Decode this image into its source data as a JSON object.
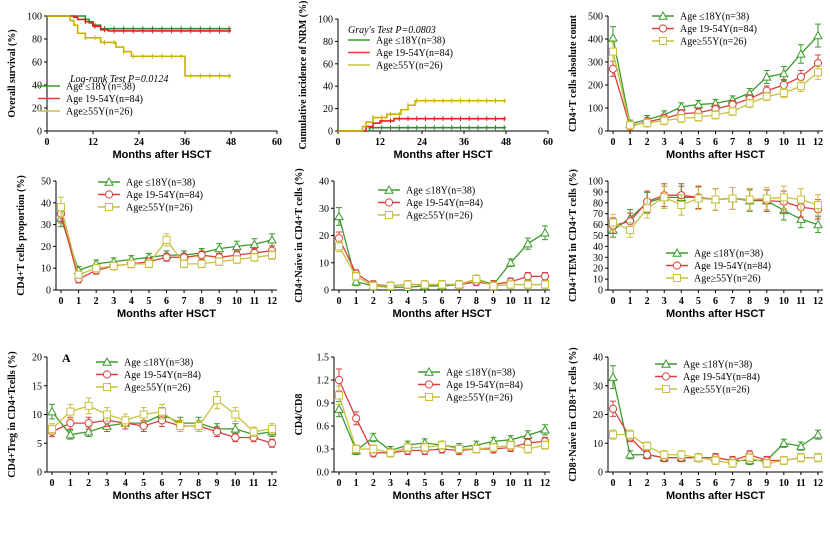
{
  "chart_data": [
    {
      "id": "os",
      "type": "line",
      "title": "",
      "xlabel": "Months after HSCT",
      "ylabel": "Overall survival (%)",
      "xlim": [
        0,
        60
      ],
      "ylim": [
        0,
        100
      ],
      "xticks": [
        "0",
        "12",
        "24",
        "36",
        "48",
        "60"
      ],
      "yticks": [
        "0",
        "20",
        "40",
        "60",
        "80",
        "100"
      ],
      "annotation": "Log-rank Test P=0.0124",
      "legend": [
        "Age ≤18Y(n=38)",
        "Age 19-54Y(n=84)",
        "Age≥55Y(n=26)"
      ],
      "series": [
        {
          "name": "Age ≤18Y(n=38)",
          "color": "#2e8b2e",
          "step": true,
          "points": [
            [
              0,
              100
            ],
            [
              9,
              100
            ],
            [
              10,
              97
            ],
            [
              11,
              94
            ],
            [
              12,
              92
            ],
            [
              14,
              89
            ],
            [
              24,
              89
            ],
            [
              48,
              89
            ]
          ]
        },
        {
          "name": "Age 19-54Y(n=84)",
          "color": "#e02020",
          "step": true,
          "points": [
            [
              0,
              100
            ],
            [
              7,
              99
            ],
            [
              8,
              97
            ],
            [
              10,
              95
            ],
            [
              12,
              91
            ],
            [
              14,
              88
            ],
            [
              16,
              87
            ],
            [
              48,
              87
            ]
          ]
        },
        {
          "name": "Age≥55Y(n=26)",
          "color": "#c8b400",
          "step": true,
          "points": [
            [
              0,
              100
            ],
            [
              6,
              96
            ],
            [
              7,
              92
            ],
            [
              8,
              85
            ],
            [
              10,
              81
            ],
            [
              14,
              77
            ],
            [
              18,
              73
            ],
            [
              20,
              69
            ],
            [
              22,
              65
            ],
            [
              30,
              65
            ],
            [
              36,
              48
            ],
            [
              48,
              48
            ]
          ]
        }
      ]
    },
    {
      "id": "nrm",
      "type": "line",
      "title": "",
      "xlabel": "Months after HSCT",
      "ylabel": "Cumulative incidence of NRM (%)",
      "xlim": [
        0,
        60
      ],
      "ylim": [
        0,
        100
      ],
      "xticks": [
        "0",
        "12",
        "24",
        "36",
        "48",
        "60"
      ],
      "yticks": [
        "0",
        "20",
        "40",
        "60",
        "80",
        "100"
      ],
      "annotation": "Gray's Test P=0.0803",
      "legend": [
        "Age ≤18Y(n=38)",
        "Age 19-54Y(n=84)",
        "Age≥55Y(n=26)"
      ],
      "series": [
        {
          "name": "Age ≤18Y(n=38)",
          "color": "#2e8b2e",
          "step": true,
          "points": [
            [
              0,
              0
            ],
            [
              8,
              0
            ],
            [
              9,
              3
            ],
            [
              48,
              3
            ]
          ]
        },
        {
          "name": "Age 19-54Y(n=84)",
          "color": "#e02020",
          "step": true,
          "points": [
            [
              0,
              0
            ],
            [
              7,
              0
            ],
            [
              8,
              4
            ],
            [
              10,
              7
            ],
            [
              12,
              9
            ],
            [
              16,
              11
            ],
            [
              48,
              11
            ]
          ]
        },
        {
          "name": "Age≥55Y(n=26)",
          "color": "#c8b400",
          "step": true,
          "points": [
            [
              0,
              0
            ],
            [
              6,
              0
            ],
            [
              7,
              4
            ],
            [
              8,
              8
            ],
            [
              10,
              12
            ],
            [
              14,
              15
            ],
            [
              18,
              19
            ],
            [
              20,
              23
            ],
            [
              22,
              27
            ],
            [
              48,
              27
            ]
          ]
        }
      ]
    },
    {
      "id": "cd4",
      "type": "line",
      "xlabel": "Months after HSCT",
      "ylabel": "CD4+T cells absolute count",
      "ylim": [
        0,
        500
      ],
      "yticks": [
        "0",
        "100",
        "200",
        "300",
        "400",
        "500"
      ],
      "categories": [
        "0",
        "1",
        "2",
        "3",
        "4",
        "5",
        "6",
        "7",
        "8",
        "9",
        "10",
        "11",
        "12"
      ],
      "legend": [
        "Age ≤18Y(n=38)",
        "Age 19-54Y(n=84)",
        "Age≥55Y(n=26)"
      ],
      "series": [
        {
          "name": "Age ≤18Y(n=38)",
          "values": [
            405,
            30,
            50,
            70,
            105,
            115,
            120,
            135,
            165,
            235,
            250,
            335,
            415
          ]
        },
        {
          "name": "Age 19-54Y(n=84)",
          "values": [
            270,
            20,
            40,
            55,
            75,
            80,
            95,
            115,
            140,
            175,
            200,
            235,
            295
          ]
        },
        {
          "name": "Age≥55Y(n=26)",
          "values": [
            345,
            25,
            35,
            45,
            55,
            60,
            70,
            85,
            120,
            150,
            165,
            195,
            255
          ]
        }
      ]
    },
    {
      "id": "cd4prop",
      "type": "line",
      "xlabel": "Months after HSCT",
      "ylabel": "CD4+T cells proportion (%)",
      "ylim": [
        0,
        50
      ],
      "yticks": [
        "0",
        "10",
        "20",
        "30",
        "40",
        "50"
      ],
      "categories": [
        "0",
        "1",
        "2",
        "3",
        "4",
        "5",
        "6",
        "7",
        "8",
        "9",
        "10",
        "11",
        "12"
      ],
      "legend": [
        "Age ≤18Y(n=38)",
        "Age 19-54Y(n=84)",
        "Age≥55Y(n=26)"
      ],
      "series": [
        {
          "name": "Age ≤18Y(n=38)",
          "values": [
            33,
            9,
            12,
            13,
            14,
            15,
            16,
            16,
            17,
            19,
            20,
            21,
            23
          ]
        },
        {
          "name": "Age 19-54Y(n=84)",
          "values": [
            35,
            5,
            9,
            11,
            12,
            13,
            15,
            15,
            16,
            15,
            16,
            17,
            18
          ]
        },
        {
          "name": "Age≥55Y(n=26)",
          "values": [
            38,
            7,
            10,
            11,
            12,
            12,
            23,
            12,
            12,
            13,
            14,
            15,
            16
          ]
        }
      ]
    },
    {
      "id": "cd4naive",
      "type": "line",
      "xlabel": "Months after HSCT",
      "ylabel": "CD4+Naive in CD4+T cells (%)",
      "ylim": [
        0,
        40
      ],
      "yticks": [
        "0",
        "10",
        "20",
        "30",
        "40"
      ],
      "categories": [
        "0",
        "1",
        "2",
        "3",
        "4",
        "5",
        "6",
        "7",
        "8",
        "9",
        "10",
        "11",
        "12"
      ],
      "legend": [
        "Age ≤18Y(n=38)",
        "Age 19-54Y(n=84)",
        "Age≥55Y(n=26)"
      ],
      "series": [
        {
          "name": "Age ≤18Y(n=38)",
          "values": [
            27,
            3,
            1.5,
            1,
            1,
            1.5,
            1.5,
            2,
            4,
            2,
            10,
            17,
            21
          ]
        },
        {
          "name": "Age 19-54Y(n=84)",
          "values": [
            19,
            6,
            2,
            1.5,
            2,
            2,
            2,
            2,
            3,
            2,
            3,
            5,
            5
          ]
        },
        {
          "name": "Age≥55Y(n=26)",
          "values": [
            16,
            5,
            1.5,
            1.5,
            2,
            2,
            2,
            2,
            4,
            1.5,
            2,
            2,
            2
          ]
        }
      ]
    },
    {
      "id": "cd4tem",
      "type": "line",
      "xlabel": "Months after HSCT",
      "ylabel": "CD4+TEM in CD4+T cells (%)",
      "ylim": [
        0,
        100
      ],
      "yticks": [
        "0",
        "10",
        "20",
        "30",
        "40",
        "50",
        "60",
        "70",
        "80",
        "90",
        "100"
      ],
      "categories": [
        "0",
        "1",
        "2",
        "3",
        "4",
        "5",
        "6",
        "7",
        "8",
        "9",
        "10",
        "11",
        "12"
      ],
      "legend": [
        "Age ≤18Y(n=38)",
        "Age 19-54Y(n=84)",
        "Age≥55Y(n=26)"
      ],
      "series": [
        {
          "name": "Age ≤18Y(n=38)",
          "values": [
            55,
            66,
            80,
            85,
            85,
            85,
            83,
            84,
            82,
            82,
            73,
            65,
            60
          ]
        },
        {
          "name": "Age 19-54Y(n=84)",
          "values": [
            59,
            63,
            81,
            87,
            87,
            85,
            83,
            84,
            83,
            82,
            81,
            76,
            74
          ]
        },
        {
          "name": "Age≥55Y(n=26)",
          "values": [
            62,
            55,
            75,
            85,
            78,
            84,
            83,
            84,
            83,
            84,
            85,
            83,
            78
          ]
        }
      ]
    },
    {
      "id": "treg",
      "type": "line",
      "panel_label": "A",
      "xlabel": "Months after HSCT",
      "ylabel": "CD4+Treg in CD4+Tcells (%)",
      "ylim": [
        0,
        20
      ],
      "yticks": [
        "0",
        "5",
        "10",
        "15",
        "20"
      ],
      "categories": [
        "0",
        "1",
        "2",
        "3",
        "4",
        "5",
        "6",
        "7",
        "8",
        "9",
        "10",
        "11",
        "12"
      ],
      "legend": [
        "Age ≤18Y(n=38)",
        "Age 19-54Y(n=84)",
        "Age≥55Y(n=26)"
      ],
      "series": [
        {
          "name": "Age ≤18Y(n=38)",
          "values": [
            10.5,
            6.5,
            7,
            8,
            8.5,
            8.5,
            10,
            8.5,
            8.5,
            7.5,
            7.5,
            6.5,
            7
          ]
        },
        {
          "name": "Age 19-54Y(n=84)",
          "values": [
            7,
            8.5,
            8.5,
            9,
            8.5,
            8,
            9,
            8,
            8,
            7,
            6,
            6,
            5
          ]
        },
        {
          "name": "Age≥55Y(n=26)",
          "values": [
            7.5,
            10.5,
            11.5,
            10,
            9,
            10,
            10.5,
            8,
            8,
            12.5,
            10,
            7,
            7.5
          ]
        }
      ]
    },
    {
      "id": "cd4cd8",
      "type": "line",
      "xlabel": "Months after HSCT",
      "ylabel": "CD4/CD8",
      "ylim": [
        0,
        1.5
      ],
      "yticks": [
        "0.0",
        "0.3",
        "0.6",
        "0.9",
        "1.2",
        "1.5"
      ],
      "categories": [
        "0",
        "1",
        "2",
        "3",
        "4",
        "5",
        "6",
        "7",
        "8",
        "9",
        "10",
        "11",
        "12"
      ],
      "legend": [
        "Age ≤18Y(n=38)",
        "Age 19-54Y(n=84)",
        "Age≥55Y(n=26)"
      ],
      "series": [
        {
          "name": "Age ≤18Y(n=38)",
          "values": [
            0.82,
            0.28,
            0.45,
            0.28,
            0.35,
            0.38,
            0.35,
            0.32,
            0.35,
            0.4,
            0.42,
            0.48,
            0.55
          ]
        },
        {
          "name": "Age 19-54Y(n=84)",
          "values": [
            1.2,
            0.7,
            0.25,
            0.25,
            0.28,
            0.28,
            0.3,
            0.28,
            0.3,
            0.3,
            0.32,
            0.38,
            0.4
          ]
        },
        {
          "name": "Age≥55Y(n=26)",
          "values": [
            1.0,
            0.3,
            0.3,
            0.25,
            0.32,
            0.32,
            0.35,
            0.3,
            0.3,
            0.32,
            0.35,
            0.3,
            0.35
          ]
        }
      ]
    },
    {
      "id": "cd8naive",
      "type": "line",
      "xlabel": "Months after HSCT",
      "ylabel": "CD8+Naive in CD8+T cells (%)",
      "ylim": [
        0,
        40
      ],
      "yticks": [
        "0",
        "10",
        "20",
        "30",
        "40"
      ],
      "categories": [
        "0",
        "1",
        "2",
        "3",
        "4",
        "5",
        "6",
        "7",
        "8",
        "9",
        "10",
        "11",
        "12"
      ],
      "legend": [
        "Age ≤18Y(n=38)",
        "Age 19-54Y(n=84)",
        "Age≥55Y(n=26)"
      ],
      "series": [
        {
          "name": "Age ≤18Y(n=38)",
          "values": [
            33,
            6,
            6,
            5,
            5,
            5,
            5,
            4,
            4,
            4,
            10,
            9,
            13
          ]
        },
        {
          "name": "Age 19-54Y(n=84)",
          "values": [
            22,
            12,
            6,
            5,
            5,
            5,
            5,
            4,
            6,
            4,
            4,
            5,
            5
          ]
        },
        {
          "name": "Age≥55Y(n=26)",
          "values": [
            13,
            13,
            9,
            6,
            6,
            5,
            4,
            3,
            5,
            3,
            4,
            5,
            5
          ]
        }
      ]
    }
  ],
  "colors": {
    "green": "#3a9a2a",
    "red": "#d94040",
    "yellow": "#c8c040",
    "axis": "#000000"
  }
}
